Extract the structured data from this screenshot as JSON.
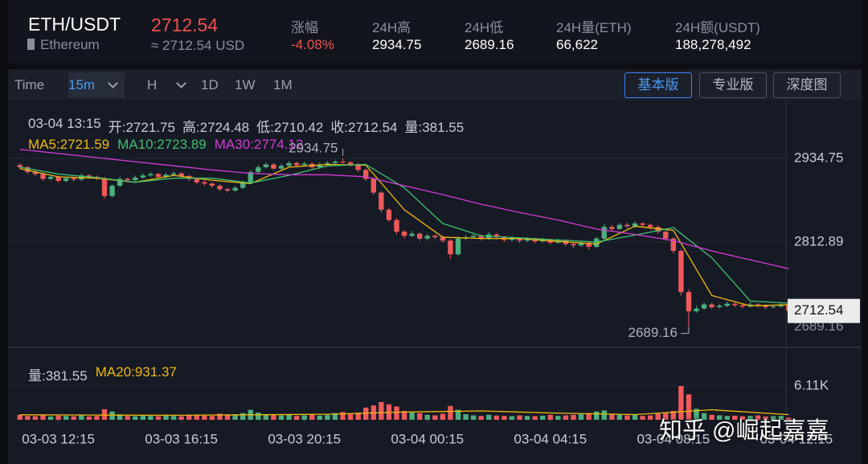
{
  "header": {
    "pair": "ETH/USDT",
    "name": "Ethereum",
    "price": "2712.54",
    "approx": "≈ 2712.54 USD",
    "stats": [
      {
        "label": "涨幅",
        "value": "-4.08%"
      },
      {
        "label": "24H高",
        "value": "2934.75"
      },
      {
        "label": "24H低",
        "value": "2689.16"
      },
      {
        "label": "24H量(ETH)",
        "value": "66,622"
      },
      {
        "label": "24H额(USDT)",
        "value": "188,278,492"
      }
    ]
  },
  "toolbar": {
    "intervals": [
      "Time",
      "15m",
      "H",
      "1D",
      "1W",
      "1M"
    ],
    "views": [
      "基本版",
      "专业版",
      "深度图"
    ]
  },
  "chart_data": {
    "type": "candlestick",
    "info": [
      "03-04 13:15",
      "开:2721.75",
      "高:2724.48",
      "低:2710.42",
      "收:2712.54",
      "量:381.55"
    ],
    "xlim": [
      -0.5,
      100.7
    ],
    "xticks": [
      {
        "value": 5,
        "label": "03-03 12:15"
      },
      {
        "value": 21,
        "label": "03-03 16:15"
      },
      {
        "value": 37,
        "label": "03-03 20:15"
      },
      {
        "value": 53,
        "label": "03-04 00:15"
      },
      {
        "value": 69,
        "label": "03-04 04:15"
      },
      {
        "value": 85,
        "label": "03-04 08:15"
      },
      {
        "value": 101,
        "label": "03-04 12:15"
      }
    ],
    "ylim": [
      2659.4,
      3013.3
    ],
    "yticks": [
      2812.89,
      2934.75
    ],
    "grid": true,
    "up_color": "#4caf7d",
    "down_color": "#ef5a5a",
    "ohlc": [
      [
        2925,
        2928,
        2919,
        2922
      ],
      [
        2922,
        2924,
        2912,
        2915
      ],
      [
        2915,
        2917,
        2909,
        2912
      ],
      [
        2912,
        2914,
        2902,
        2905
      ],
      [
        2905,
        2910,
        2903,
        2908
      ],
      [
        2908,
        2910,
        2899,
        2902
      ],
      [
        2902,
        2908,
        2900,
        2906
      ],
      [
        2906,
        2908,
        2901,
        2904
      ],
      [
        2904,
        2913,
        2902,
        2910
      ],
      [
        2910,
        2912,
        2905,
        2908
      ],
      [
        2908,
        2910,
        2903,
        2906
      ],
      [
        2906,
        2908,
        2876,
        2880
      ],
      [
        2880,
        2897,
        2878,
        2895
      ],
      [
        2895,
        2908,
        2893,
        2905
      ],
      [
        2905,
        2907,
        2900,
        2903
      ],
      [
        2903,
        2910,
        2901,
        2907
      ],
      [
        2907,
        2913,
        2905,
        2910
      ],
      [
        2910,
        2915,
        2908,
        2912
      ],
      [
        2912,
        2914,
        2905,
        2908
      ],
      [
        2908,
        2914,
        2906,
        2911
      ],
      [
        2911,
        2916,
        2909,
        2913
      ],
      [
        2913,
        2915,
        2906,
        2909
      ],
      [
        2909,
        2911,
        2902,
        2905
      ],
      [
        2905,
        2907,
        2897,
        2900
      ],
      [
        2900,
        2903,
        2895,
        2898
      ],
      [
        2898,
        2900,
        2892,
        2895
      ],
      [
        2895,
        2897,
        2887,
        2890
      ],
      [
        2890,
        2892,
        2885,
        2888
      ],
      [
        2888,
        2895,
        2886,
        2892
      ],
      [
        2892,
        2903,
        2890,
        2900
      ],
      [
        2900,
        2918,
        2898,
        2915
      ],
      [
        2915,
        2925,
        2913,
        2922
      ],
      [
        2922,
        2929,
        2920,
        2926
      ],
      [
        2926,
        2928,
        2917,
        2920
      ],
      [
        2920,
        2927,
        2918,
        2924
      ],
      [
        2924,
        2931,
        2922,
        2928
      ],
      [
        2928,
        2930,
        2922,
        2925
      ],
      [
        2925,
        2930,
        2923,
        2927
      ],
      [
        2927,
        2929,
        2919,
        2922
      ],
      [
        2922,
        2929,
        2920,
        2926
      ],
      [
        2926,
        2931,
        2924,
        2928
      ],
      [
        2928,
        2933,
        2926,
        2930
      ],
      [
        2930,
        2934.75,
        2927,
        2929
      ],
      [
        2929,
        2931,
        2923,
        2926
      ],
      [
        2926,
        2928,
        2915,
        2918
      ],
      [
        2918,
        2920,
        2902,
        2905
      ],
      [
        2905,
        2907,
        2882,
        2885
      ],
      [
        2885,
        2887,
        2856,
        2860
      ],
      [
        2860,
        2863,
        2842,
        2845
      ],
      [
        2845,
        2848,
        2824,
        2828
      ],
      [
        2828,
        2831,
        2818,
        2822
      ],
      [
        2822,
        2829,
        2820,
        2825
      ],
      [
        2825,
        2827,
        2815,
        2818
      ],
      [
        2818,
        2825,
        2816,
        2822
      ],
      [
        2822,
        2824,
        2817,
        2820
      ],
      [
        2820,
        2822,
        2812,
        2815
      ],
      [
        2815,
        2817,
        2788,
        2795
      ],
      [
        2795,
        2821,
        2793,
        2818
      ],
      [
        2818,
        2823,
        2816,
        2820
      ],
      [
        2820,
        2825,
        2818,
        2822
      ],
      [
        2822,
        2824,
        2815,
        2818
      ],
      [
        2818,
        2827,
        2816,
        2824
      ],
      [
        2824,
        2826,
        2817,
        2820
      ],
      [
        2820,
        2822,
        2813,
        2816
      ],
      [
        2816,
        2821,
        2814,
        2818
      ],
      [
        2818,
        2820,
        2812,
        2815
      ],
      [
        2815,
        2820,
        2813,
        2817
      ],
      [
        2817,
        2819,
        2811,
        2814
      ],
      [
        2814,
        2819,
        2812,
        2816
      ],
      [
        2816,
        2818,
        2809,
        2812
      ],
      [
        2812,
        2818,
        2810,
        2815
      ],
      [
        2815,
        2817,
        2807,
        2810
      ],
      [
        2810,
        2812,
        2804,
        2808
      ],
      [
        2808,
        2815,
        2806,
        2812
      ],
      [
        2812,
        2814,
        2802,
        2806
      ],
      [
        2806,
        2821,
        2804,
        2818
      ],
      [
        2818,
        2839,
        2816,
        2835
      ],
      [
        2835,
        2838,
        2829,
        2832
      ],
      [
        2832,
        2841,
        2830,
        2838
      ],
      [
        2838,
        2841,
        2833,
        2836
      ],
      [
        2836,
        2843,
        2834,
        2840
      ],
      [
        2840,
        2842,
        2835,
        2838
      ],
      [
        2838,
        2840,
        2831,
        2835
      ],
      [
        2835,
        2837,
        2825,
        2828
      ],
      [
        2828,
        2830,
        2815,
        2818
      ],
      [
        2818,
        2820,
        2796,
        2800
      ],
      [
        2800,
        2803,
        2735,
        2740
      ],
      [
        2740,
        2744,
        2689.16,
        2712
      ],
      [
        2712,
        2720,
        2710,
        2716
      ],
      [
        2716,
        2725,
        2714,
        2722
      ],
      [
        2722,
        2724,
        2715,
        2718
      ],
      [
        2718,
        2723,
        2716,
        2720
      ],
      [
        2720,
        2726,
        2718,
        2723
      ],
      [
        2723,
        2725,
        2718,
        2721
      ],
      [
        2721,
        2723,
        2716,
        2719
      ],
      [
        2719,
        2725,
        2717,
        2722
      ],
      [
        2722,
        2724,
        2717,
        2720
      ],
      [
        2720,
        2722,
        2715,
        2718
      ],
      [
        2718,
        2721,
        2716,
        2719
      ],
      [
        2719,
        2724,
        2717,
        2721.75
      ],
      [
        2721.75,
        2724.48,
        2710.42,
        2712.54
      ]
    ],
    "ma": [
      {
        "name": "MA5:2721.59",
        "color": "#f0b90b",
        "x": [
          0,
          5,
          10,
          15,
          20,
          25,
          30,
          35,
          40,
          45,
          50,
          55,
          60,
          65,
          70,
          75,
          80,
          85,
          90,
          95,
          100
        ],
        "values": [
          2920,
          2908,
          2906,
          2900,
          2910,
          2903,
          2898,
          2922,
          2926,
          2925,
          2860,
          2820,
          2818,
          2818,
          2814,
          2810,
          2836,
          2830,
          2735,
          2720,
          2721.59
        ]
      },
      {
        "name": "MA10:2723.89",
        "color": "#3fbf6f",
        "x": [
          0,
          5,
          10,
          15,
          20,
          25,
          30,
          35,
          40,
          45,
          50,
          55,
          60,
          65,
          70,
          75,
          80,
          85,
          90,
          95,
          100
        ],
        "values": [
          2922,
          2912,
          2907,
          2900,
          2906,
          2906,
          2899,
          2910,
          2924,
          2926,
          2892,
          2840,
          2822,
          2819,
          2816,
          2813,
          2823,
          2834,
          2790,
          2727,
          2723.89
        ]
      },
      {
        "name": "MA30:2774.12",
        "color": "#d63bd6",
        "x": [
          0,
          5,
          10,
          15,
          20,
          25,
          30,
          35,
          40,
          45,
          50,
          55,
          60,
          65,
          70,
          75,
          80,
          85,
          90,
          95,
          100
        ],
        "values": [
          2948,
          2942,
          2936,
          2930,
          2924,
          2918,
          2913,
          2911,
          2911,
          2908,
          2895,
          2882,
          2868,
          2856,
          2845,
          2832,
          2824,
          2815,
          2800,
          2787,
          2774.12
        ]
      }
    ],
    "volume": {
      "legend": "量:381.55",
      "ylim": [
        0,
        11930
      ],
      "yticks": [
        {
          "value": 6110,
          "label": "6.11K"
        }
      ],
      "values": [
        900,
        700,
        650,
        800,
        600,
        750,
        700,
        650,
        850,
        600,
        700,
        1900,
        1500,
        1000,
        700,
        650,
        800,
        700,
        650,
        900,
        700,
        650,
        800,
        900,
        750,
        700,
        1100,
        950,
        1000,
        1200,
        1800,
        1300,
        1000,
        900,
        800,
        1000,
        700,
        800,
        900,
        750,
        850,
        1200,
        1400,
        1100,
        1300,
        2200,
        2600,
        3200,
        2800,
        2400,
        1600,
        1300,
        1200,
        900,
        800,
        1100,
        2500,
        1800,
        1000,
        800,
        700,
        900,
        750,
        700,
        650,
        800,
        700,
        650,
        750,
        900,
        700,
        800,
        900,
        1000,
        1200,
        1500,
        1700,
        1000,
        900,
        800,
        1000,
        700,
        800,
        1100,
        1300,
        1600,
        6110,
        4600,
        2000,
        1200,
        900,
        800,
        700,
        750,
        650,
        700,
        800,
        600,
        650,
        700,
        381.55
      ],
      "ma": [
        {
          "name": "MA20:931.37",
          "color": "#f0b90b",
          "x": [
            0,
            10,
            20,
            30,
            40,
            50,
            60,
            70,
            80,
            90,
            100
          ],
          "values": [
            900,
            850,
            820,
            900,
            1000,
            1400,
            1600,
            1200,
            950,
            1800,
            931.37
          ]
        }
      ]
    }
  },
  "watermark": "知乎 @崛起嘉嘉"
}
